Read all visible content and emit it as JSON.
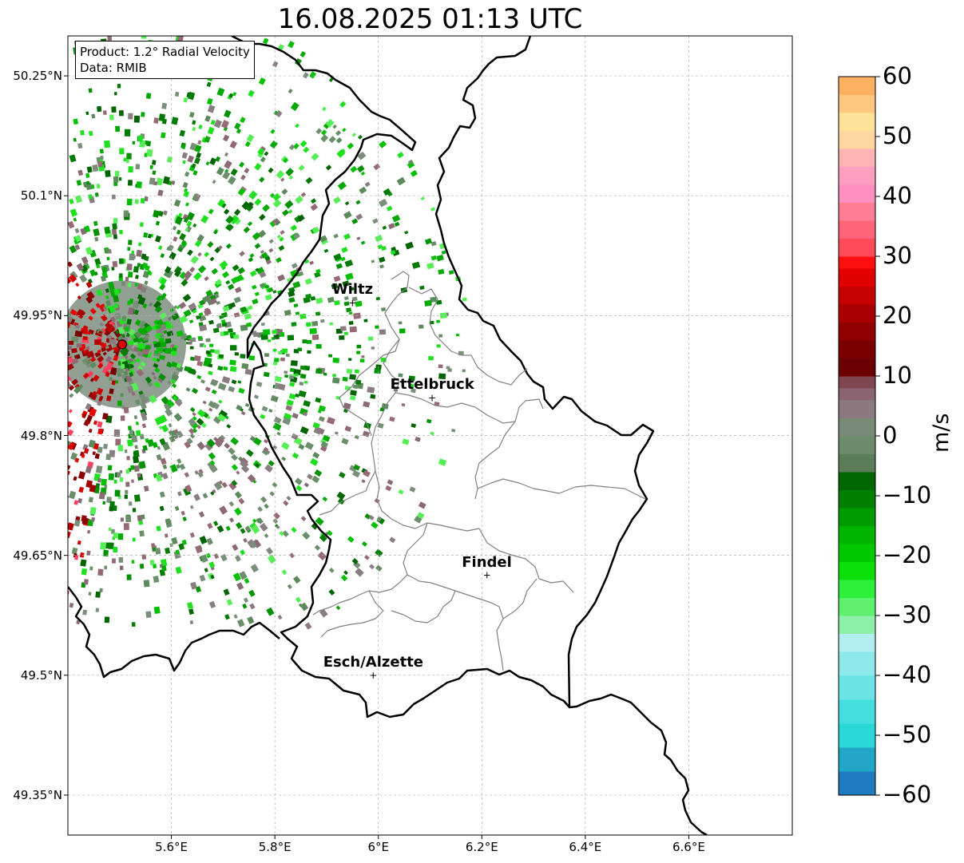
{
  "title": "16.08.2025 01:13 UTC",
  "info": {
    "product_line": "Product: 1.2° Radial Velocity",
    "data_line": "Data: RMIB"
  },
  "map": {
    "lon_range": [
      5.4,
      6.8
    ],
    "lat_range": [
      49.3,
      50.3
    ],
    "lat_ticks": [
      {
        "value": 50.25,
        "label": "50.25°N"
      },
      {
        "value": 50.1,
        "label": "50.1°N"
      },
      {
        "value": 49.95,
        "label": "49.95°N"
      },
      {
        "value": 49.8,
        "label": "49.8°N"
      },
      {
        "value": 49.65,
        "label": "49.65°N"
      },
      {
        "value": 49.5,
        "label": "49.5°N"
      },
      {
        "value": 49.35,
        "label": "49.35°N"
      }
    ],
    "lon_ticks": [
      {
        "value": 5.6,
        "label": "5.6°E"
      },
      {
        "value": 5.8,
        "label": "5.8°E"
      },
      {
        "value": 6.0,
        "label": "6°E"
      },
      {
        "value": 6.2,
        "label": "6.2°E"
      },
      {
        "value": 6.4,
        "label": "6.4°E"
      },
      {
        "value": 6.6,
        "label": "6.6°E"
      }
    ],
    "cities": [
      {
        "name": "Wiltz",
        "lon": 5.95,
        "lat": 49.966
      },
      {
        "name": "Ettelbruck",
        "lon": 6.104,
        "lat": 49.847
      },
      {
        "name": "Findel",
        "lon": 6.21,
        "lat": 49.625
      },
      {
        "name": "Esch/Alzette",
        "lon": 5.99,
        "lat": 49.5
      }
    ],
    "radar_site": {
      "lon": 5.505,
      "lat": 49.914
    },
    "grid": true
  },
  "colorbar": {
    "unit": "m/s",
    "min": -60,
    "max": 60,
    "ticks": [
      {
        "value": 60,
        "label": "60"
      },
      {
        "value": 50,
        "label": "50"
      },
      {
        "value": 40,
        "label": "40"
      },
      {
        "value": 30,
        "label": "30"
      },
      {
        "value": 20,
        "label": "20"
      },
      {
        "value": 10,
        "label": "10"
      },
      {
        "value": 0,
        "label": "0"
      },
      {
        "value": -10,
        "label": "−10"
      },
      {
        "value": -20,
        "label": "−20"
      },
      {
        "value": -30,
        "label": "−30"
      },
      {
        "value": -40,
        "label": "−40"
      },
      {
        "value": -50,
        "label": "−50"
      },
      {
        "value": -60,
        "label": "−60"
      }
    ]
  }
}
